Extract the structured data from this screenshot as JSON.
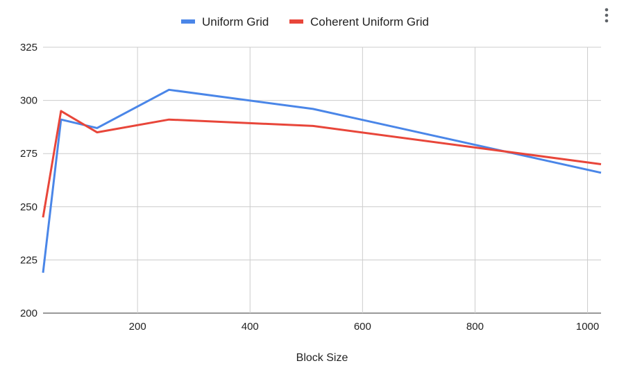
{
  "chart_data": {
    "type": "line",
    "xlabel": "Block Size",
    "ylabel": "",
    "title": "",
    "xlim": [
      32,
      1024
    ],
    "ylim": [
      200,
      325
    ],
    "xticks": [
      200,
      400,
      600,
      800,
      1000
    ],
    "yticks": [
      200,
      225,
      250,
      275,
      300,
      325
    ],
    "grid": true,
    "legend_position": "top",
    "series": [
      {
        "name": "Uniform Grid",
        "color": "#4a86e8",
        "x": [
          32,
          64,
          128,
          256,
          512,
          1024
        ],
        "values": [
          219,
          291,
          287,
          305,
          296,
          266
        ]
      },
      {
        "name": "Coherent Uniform Grid",
        "color": "#e8463a",
        "x": [
          32,
          64,
          128,
          256,
          512,
          1024
        ],
        "values": [
          245,
          295,
          285,
          291,
          288,
          270
        ]
      }
    ]
  },
  "menu": {
    "icon": "more-vert-icon"
  }
}
